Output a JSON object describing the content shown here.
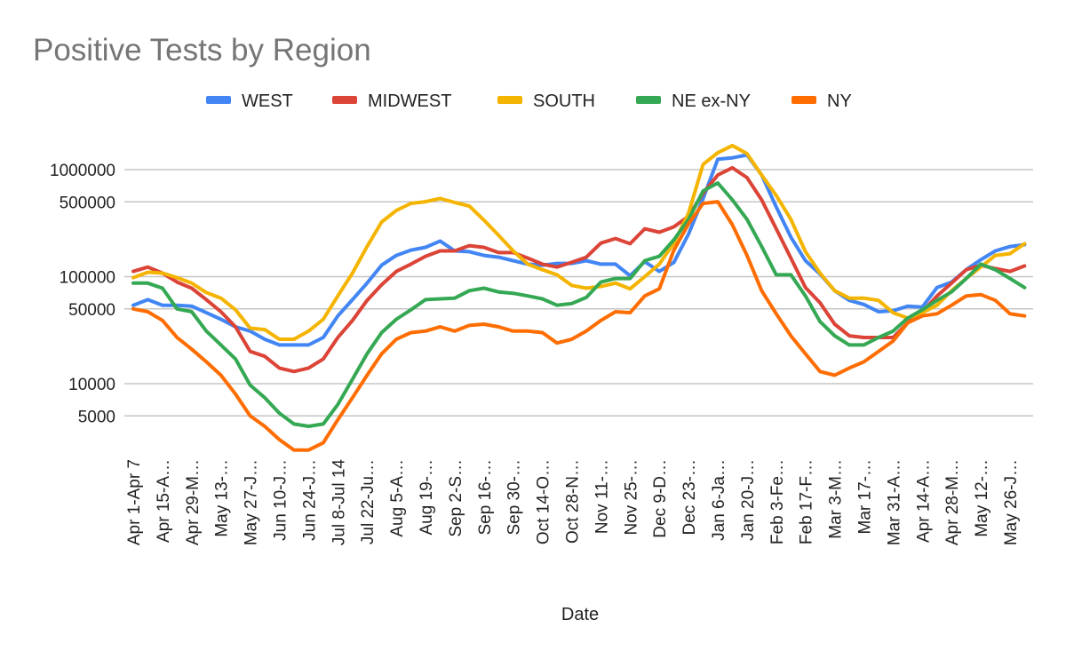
{
  "chart_data": {
    "type": "line",
    "title": "Positive Tests by Region",
    "xlabel": "Date",
    "ylabel": "",
    "yscale": "log",
    "ylim": [
      2000,
      2000000
    ],
    "yticks": [
      5000,
      10000,
      50000,
      100000,
      500000,
      1000000
    ],
    "ytick_labels": [
      "5000",
      "10000",
      "50000",
      "100000",
      "500000",
      "1000000"
    ],
    "grid": true,
    "legend_position": "top",
    "x": [
      0,
      1,
      2,
      3,
      4,
      5,
      6,
      7,
      8,
      9,
      10,
      11,
      12,
      13,
      14,
      15,
      16,
      17,
      18,
      19,
      20,
      21,
      22,
      23,
      24,
      25,
      26,
      27,
      28,
      29,
      30,
      31,
      32,
      33,
      34,
      35,
      36,
      37,
      38,
      39,
      40,
      41,
      42,
      43,
      44,
      45,
      46,
      47,
      48,
      49,
      50,
      51,
      52,
      53,
      54,
      55,
      56,
      57,
      58,
      59,
      60,
      61
    ],
    "xtick_every": 2,
    "xtick_labels": [
      "Apr 1-Apr 7",
      "Apr 15-A…",
      "Apr 29-M…",
      "May 13-…",
      "May 27-J…",
      "Jun 10-J…",
      "Jun 24-J…",
      "Jul 8-Jul 14",
      "Jul 22-Ju…",
      "Aug 5-A…",
      "Aug 19-…",
      "Sep 2-S…",
      "Sep 16-…",
      "Sep 30-…",
      "Oct 14-O…",
      "Oct 28-N…",
      "Nov 11-…",
      "Nov 25-…",
      "Dec 9-D…",
      "Dec 23-…",
      "Jan 6-Ja…",
      "Jan 20-J…",
      "Feb 3-Fe…",
      "Feb 17-F…",
      "Mar 3-M…",
      "Mar 17-…",
      "Mar 31-A…",
      "Apr 14-A…",
      "Apr 28-M…",
      "May 12-…",
      "May 26-J…"
    ],
    "series": [
      {
        "name": "WEST",
        "color": "#4285F4",
        "values": [
          54000,
          61000,
          54000,
          54000,
          53000,
          46000,
          40000,
          34000,
          31000,
          26000,
          23000,
          23000,
          23000,
          27000,
          43000,
          61000,
          87000,
          128000,
          158000,
          177000,
          188000,
          215000,
          174000,
          171000,
          158000,
          152000,
          141000,
          131000,
          128000,
          133000,
          133000,
          141000,
          131000,
          131000,
          102000,
          138000,
          112000,
          136000,
          250000,
          537000,
          1250000,
          1290000,
          1370000,
          890000,
          448000,
          234000,
          141000,
          106000,
          74000,
          60000,
          55000,
          47000,
          48000,
          53000,
          52000,
          79000,
          89000,
          116000,
          144000,
          174000,
          191000,
          199000
        ]
      },
      {
        "name": "MIDWEST",
        "color": "#DB4437",
        "values": [
          112000,
          123000,
          108000,
          89000,
          78000,
          61000,
          47000,
          34000,
          20000,
          18000,
          14000,
          13000,
          14000,
          17000,
          27000,
          39000,
          60000,
          84000,
          112000,
          131000,
          155000,
          174000,
          174000,
          195000,
          188000,
          168000,
          168000,
          149000,
          131000,
          123000,
          136000,
          152000,
          206000,
          227000,
          203000,
          280000,
          260000,
          292000,
          367000,
          603000,
          890000,
          1040000,
          842000,
          522000,
          280000,
          149000,
          79000,
          57000,
          36000,
          28000,
          27000,
          27000,
          27000,
          37000,
          47000,
          66000,
          87000,
          116000,
          128000,
          119000,
          112000,
          126000
        ]
      },
      {
        "name": "SOUTH",
        "color": "#F4B400",
        "values": [
          98000,
          110000,
          108000,
          98000,
          87000,
          71000,
          63000,
          49000,
          33000,
          32000,
          26000,
          26000,
          31000,
          40000,
          66000,
          108000,
          191000,
          324000,
          415000,
          484000,
          502000,
          537000,
          493000,
          457000,
          337000,
          243000,
          174000,
          131000,
          116000,
          104000,
          83000,
          78000,
          81000,
          87000,
          77000,
          100000,
          131000,
          206000,
          392000,
          1120000,
          1440000,
          1680000,
          1410000,
          890000,
          574000,
          343000,
          171000,
          108000,
          74000,
          63000,
          63000,
          60000,
          46000,
          41000,
          46000,
          54000,
          74000,
          96000,
          123000,
          158000,
          164000,
          203000
        ]
      },
      {
        "name": "NE ex-NY",
        "color": "#34A853",
        "values": [
          87000,
          87000,
          78000,
          50000,
          47000,
          31000,
          23000,
          17000,
          9700,
          7400,
          5300,
          4200,
          4000,
          4200,
          6400,
          11000,
          19000,
          30000,
          40000,
          49000,
          61000,
          62000,
          63000,
          74000,
          78000,
          72000,
          70000,
          66000,
          62000,
          54000,
          56000,
          64000,
          89000,
          96000,
          96000,
          141000,
          155000,
          221000,
          343000,
          632000,
          751000,
          522000,
          343000,
          191000,
          104000,
          104000,
          66000,
          38000,
          28000,
          23000,
          23000,
          27000,
          31000,
          41000,
          49000,
          60000,
          72000,
          96000,
          131000,
          116000,
          96000,
          79000
        ]
      },
      {
        "name": "NY",
        "color": "#FF6D01",
        "values": [
          50000,
          47000,
          39000,
          27000,
          21000,
          16000,
          12000,
          8000,
          5000,
          4000,
          3000,
          2400,
          2400,
          2800,
          4600,
          7400,
          12000,
          19000,
          26000,
          30000,
          31000,
          34000,
          31000,
          35000,
          36000,
          34000,
          31000,
          31000,
          30000,
          24000,
          26000,
          31000,
          39000,
          47000,
          46000,
          66000,
          77000,
          177000,
          312000,
          484000,
          502000,
          306000,
          158000,
          74000,
          45000,
          28000,
          19000,
          13000,
          12000,
          14000,
          16000,
          20000,
          25000,
          37000,
          43000,
          45000,
          54000,
          66000,
          68000,
          60000,
          45000,
          43000
        ]
      }
    ]
  }
}
